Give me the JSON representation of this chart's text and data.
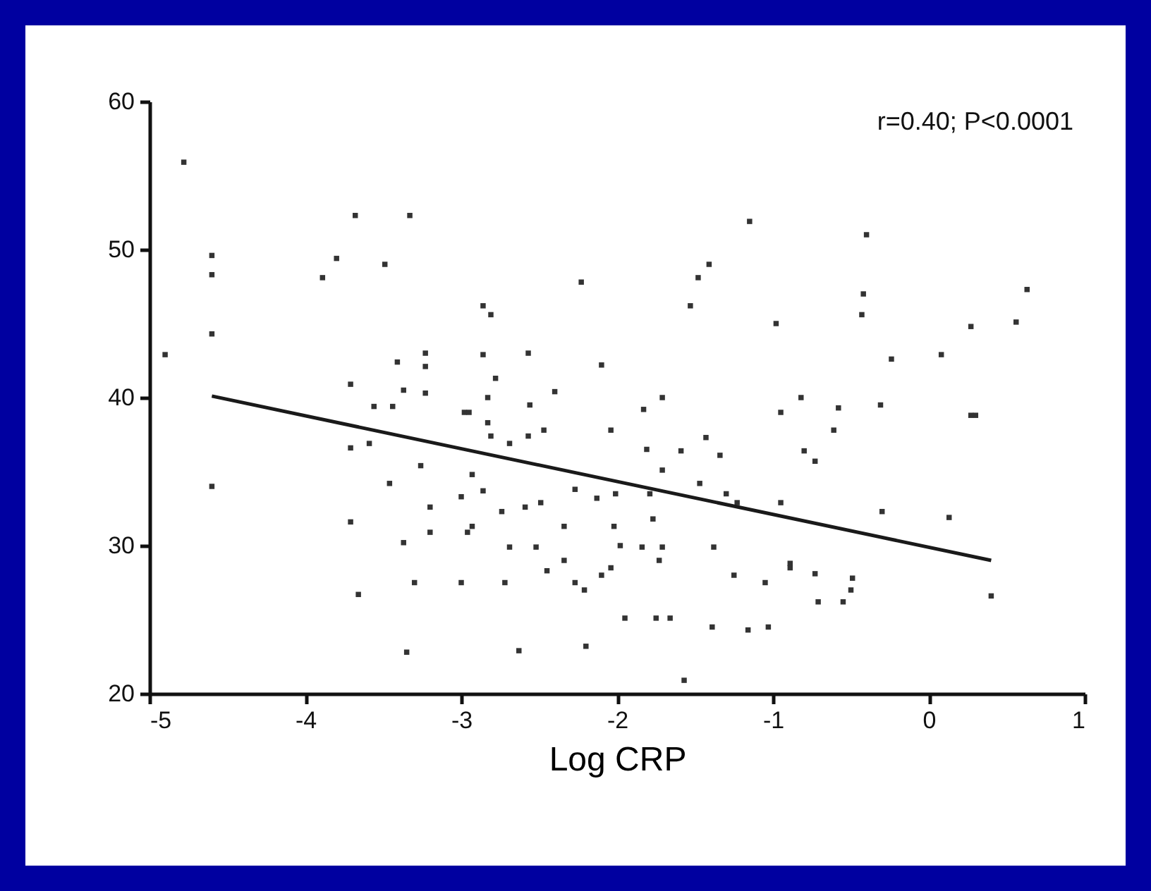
{
  "chart_data": {
    "type": "scatter",
    "xlabel": "Log CRP",
    "annotations": [
      "r=0.40; P<0.0001"
    ],
    "xlim": [
      -5,
      1
    ],
    "ylim": [
      20,
      60
    ],
    "xticks": [
      -5,
      -4,
      -3,
      -2,
      -1,
      0,
      1
    ],
    "yticks": [
      20,
      30,
      40,
      50,
      60
    ],
    "grid": false,
    "series": [
      {
        "marker": "square",
        "color": "#333333",
        "x": [
          -4.78,
          -3.68,
          -3.33,
          -4.6,
          -4.6,
          -3.8,
          -3.49,
          -3.89,
          -4.6,
          -4.9,
          -3.41,
          -3.23,
          -3.23,
          -3.71,
          -3.37,
          -3.23,
          -3.56,
          -3.44,
          -2.98,
          -1.15,
          -1.41,
          -1.48,
          -2.23,
          -2.86,
          -2.81,
          -1.53,
          -0.98,
          -2.86,
          -2.57,
          -2.1,
          -2.78,
          -2.4,
          -2.83,
          -2.56,
          -1.71,
          -1.83,
          -2.95,
          -0.95,
          -0.4,
          -0.42,
          -0.43,
          0.63,
          0.56,
          0.27,
          -0.24,
          0.08,
          -0.82,
          -0.58,
          -0.31,
          0.27,
          -4.6,
          -3.71,
          -3.37,
          -3.3,
          -3.66,
          -3.0,
          -3.35,
          -3.71,
          -3.59,
          -3.46,
          -3.2,
          -3.2,
          -2.96,
          -3.26,
          -3.0,
          -2.93,
          -2.83,
          -2.81,
          -2.69,
          -2.57,
          -2.47,
          -2.04,
          -1.81,
          -1.59,
          -1.43,
          -1.34,
          -1.71,
          -2.74,
          -2.93,
          -2.34,
          -2.02,
          -1.77,
          -2.69,
          -2.52,
          -1.98,
          -1.84,
          -1.71,
          -1.38,
          -2.34,
          -2.04,
          -1.73,
          -1.25,
          -0.89,
          -2.1,
          -2.72,
          -2.45,
          -2.27,
          -2.21,
          -1.05,
          -1.95,
          -1.75,
          -1.66,
          -1.39,
          -1.16,
          -1.03,
          -2.63,
          -2.2,
          -1.57,
          -2.86,
          -2.59,
          -2.49,
          -2.27,
          -2.13,
          -2.01,
          -1.79,
          -1.47,
          -1.3,
          -1.23,
          -0.95,
          0.3,
          -0.61,
          -0.8,
          -0.73,
          -0.3,
          0.13,
          -0.73,
          -0.49,
          -0.5,
          -0.71,
          -0.55,
          0.4,
          -0.89
        ],
        "values": [
          55.9,
          52.3,
          52.3,
          49.6,
          48.3,
          49.4,
          49.0,
          48.1,
          44.3,
          42.9,
          42.4,
          43.0,
          42.1,
          40.9,
          40.5,
          40.3,
          39.4,
          39.4,
          39.0,
          51.9,
          49.0,
          48.1,
          47.8,
          46.2,
          45.6,
          46.2,
          45.0,
          42.9,
          43.0,
          42.2,
          41.3,
          40.4,
          40.0,
          39.5,
          40.0,
          39.2,
          39.0,
          39.0,
          51.0,
          47.0,
          45.6,
          47.3,
          45.1,
          44.8,
          42.6,
          42.9,
          40.0,
          39.3,
          39.5,
          38.8,
          34.0,
          31.6,
          30.2,
          27.5,
          26.7,
          27.5,
          22.8,
          36.6,
          36.9,
          34.2,
          32.6,
          30.9,
          30.9,
          35.4,
          33.3,
          34.8,
          38.3,
          37.4,
          36.9,
          37.4,
          37.8,
          37.8,
          36.5,
          36.4,
          37.3,
          36.1,
          35.1,
          32.3,
          31.3,
          31.3,
          31.3,
          31.8,
          29.9,
          29.9,
          30.0,
          29.9,
          29.9,
          29.9,
          29.0,
          28.5,
          29.0,
          28.0,
          28.5,
          28.0,
          27.5,
          28.3,
          27.5,
          27.0,
          27.5,
          25.1,
          25.1,
          25.1,
          24.5,
          24.3,
          24.5,
          22.9,
          23.2,
          20.9,
          33.7,
          32.6,
          32.9,
          33.8,
          33.2,
          33.5,
          33.5,
          34.2,
          33.5,
          32.9,
          32.9,
          38.8,
          37.8,
          36.4,
          35.7,
          32.3,
          31.9,
          28.1,
          27.8,
          27.0,
          26.2,
          26.2,
          26.6,
          28.8
        ]
      },
      {
        "type": "line",
        "color": "#1a1a1a",
        "x": [
          -4.6,
          0.4
        ],
        "values": [
          40.1,
          29.0
        ]
      }
    ]
  }
}
